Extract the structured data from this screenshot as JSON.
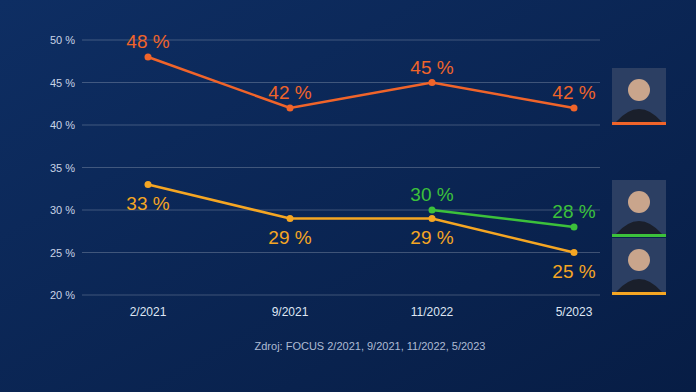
{
  "chart_data": {
    "type": "line",
    "categories": [
      "2/2021",
      "9/2021",
      "11/2022",
      "5/2023"
    ],
    "series": [
      {
        "color": "#f0642a",
        "marker": "circle",
        "values": [
          48,
          42,
          45,
          42
        ],
        "value_labels": [
          "48 %",
          "42 %",
          "45 %",
          "42 %"
        ]
      },
      {
        "color": "#f5a623",
        "marker": "circle",
        "values": [
          33,
          29,
          29,
          25
        ],
        "value_labels": [
          "33 %",
          "29 %",
          "29 %",
          "25 %"
        ]
      },
      {
        "color": "#3cc13b",
        "marker": "circle",
        "values": [
          null,
          null,
          30,
          28
        ],
        "value_labels": [
          null,
          null,
          "30 %",
          "28 %"
        ]
      }
    ],
    "ylim": [
      20,
      50
    ],
    "yticks": [
      {
        "value": 20,
        "label": "20 %"
      },
      {
        "value": 25,
        "label": "25 %"
      },
      {
        "value": 30,
        "label": "30 %"
      },
      {
        "value": 35,
        "label": "35 %"
      },
      {
        "value": 40,
        "label": "40 %"
      },
      {
        "value": 45,
        "label": "45 %"
      },
      {
        "value": 50,
        "label": "50 %"
      }
    ],
    "grid": true,
    "data_labels": true,
    "annotations": [
      "Zdroj: FOCUS 2/2021, 9/2021, 11/2022, 5/2023"
    ]
  }
}
